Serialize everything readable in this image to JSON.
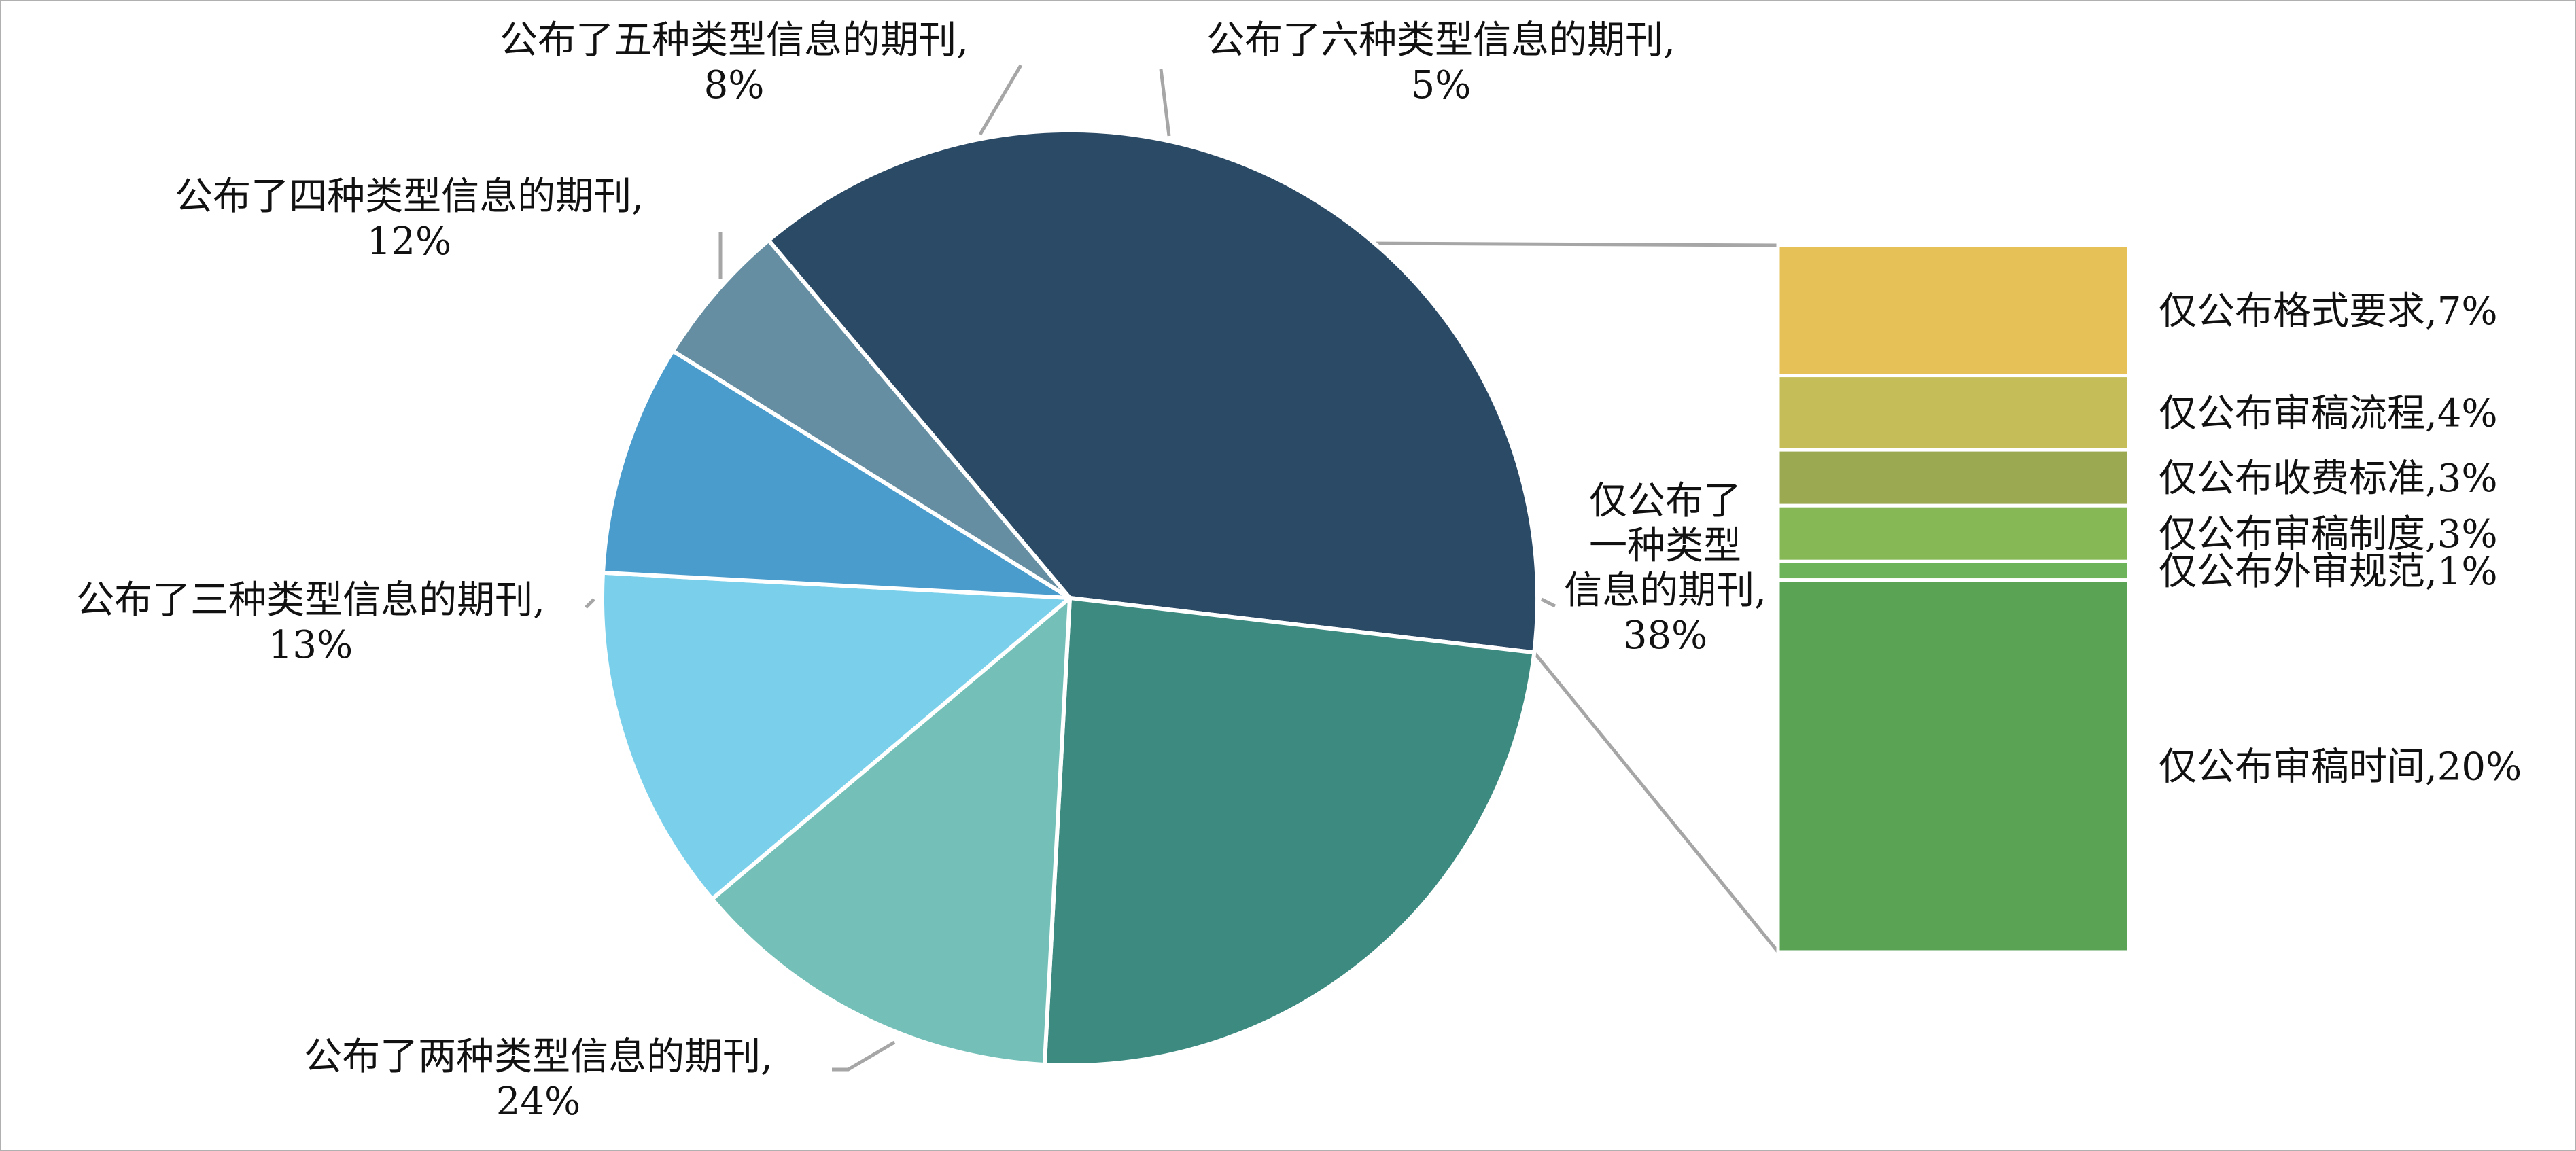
{
  "chart_data": {
    "type": "bar-of-pie",
    "pie": {
      "slices": [
        {
          "label": "仅公布了一种类型信息的期刊",
          "label_lines": [
            "仅公布了",
            "一种类型",
            "信息的期刊,"
          ],
          "value_label": "38%",
          "value": 38,
          "color": "#2b4a66"
        },
        {
          "label": "公布了两种类型信息的期刊",
          "label_lines": [
            "公布了两种类型信息的期刊,"
          ],
          "value_label": "24%",
          "value": 24,
          "color": "#3c8a80"
        },
        {
          "label": "公布了三种类型信息的期刊",
          "label_lines": [
            "公布了三种类型信息的期刊,"
          ],
          "value_label": "13%",
          "value": 13,
          "color": "#74c0b8"
        },
        {
          "label": "公布了四种类型信息的期刊",
          "label_lines": [
            "公布了四种类型信息的期刊,"
          ],
          "value_label": "12%",
          "value": 12,
          "color": "#7ad0eb"
        },
        {
          "label": "公布了五种类型信息的期刊",
          "label_lines": [
            "公布了五种类型信息的期刊,"
          ],
          "value_label": "8%",
          "value": 8,
          "color": "#4a9ccc"
        },
        {
          "label": "公布了六种类型信息的期刊",
          "label_lines": [
            "公布了六种类型信息的期刊,"
          ],
          "value_label": "5%",
          "value": 5,
          "color": "#658ea2"
        }
      ]
    },
    "bar": {
      "parent_slice": "仅公布了一种类型信息的期刊",
      "segments": [
        {
          "label": "仅公布格式要求,7%",
          "value": 7,
          "color": "#e6c157"
        },
        {
          "label": "仅公布审稿流程,4%",
          "value": 4,
          "color": "#c5bd57"
        },
        {
          "label": "仅公布收费标准,3%",
          "value": 3,
          "color": "#9ba950"
        },
        {
          "label": "仅公布审稿制度,3%",
          "value": 3,
          "color": "#86b956"
        },
        {
          "label": "仅公布外审规范,1%",
          "value": 1,
          "color": "#6db35a"
        },
        {
          "label": "仅公布审稿时间,20%",
          "value": 20,
          "color": "#5ba354"
        }
      ]
    },
    "legend": "none"
  }
}
